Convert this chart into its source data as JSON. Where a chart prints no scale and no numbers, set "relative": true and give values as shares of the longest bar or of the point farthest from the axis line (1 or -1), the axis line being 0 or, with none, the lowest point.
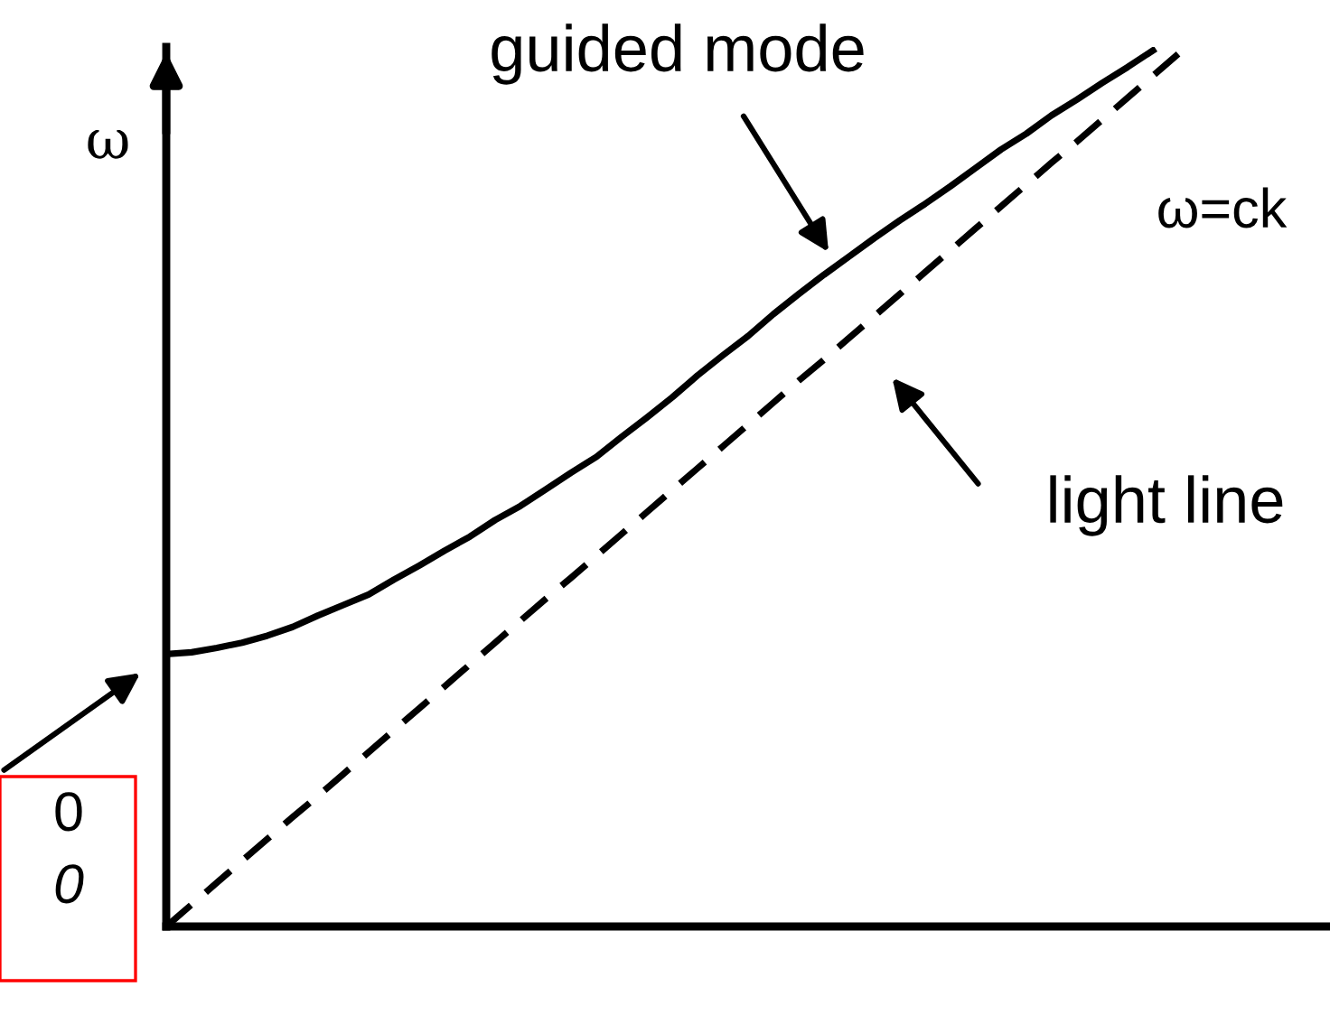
{
  "chart_data": {
    "type": "line",
    "relative": true,
    "ylabel": "ω",
    "categories": [
      null,
      null,
      null,
      null,
      null,
      null,
      null,
      null,
      null,
      null,
      null,
      null,
      null,
      null,
      null,
      null,
      null,
      null,
      null,
      null,
      null,
      null,
      null,
      null,
      null,
      null,
      null,
      null,
      null,
      null,
      null,
      null,
      null,
      null,
      null,
      null,
      null,
      null,
      null,
      null,
      null
    ],
    "series": [
      {
        "color": "#000000",
        "line_style": "solid",
        "values": [
          0.311,
          0.313,
          0.318,
          0.324,
          0.332,
          0.342,
          0.355,
          0.367,
          0.379,
          0.396,
          0.412,
          0.429,
          0.445,
          0.464,
          0.48,
          0.499,
          0.518,
          0.536,
          0.559,
          0.581,
          0.604,
          0.629,
          0.652,
          0.674,
          0.699,
          0.722,
          0.744,
          0.765,
          0.786,
          0.806,
          0.825,
          0.845,
          0.866,
          0.887,
          0.905,
          0.926,
          0.944,
          0.963,
          0.981,
          1.0,
          null
        ]
      },
      {
        "color": "#000000",
        "line_style": "dashed",
        "values": [
          0,
          0.025,
          0.05,
          0.075,
          0.1,
          0.125,
          0.149,
          0.174,
          0.199,
          0.224,
          0.249,
          0.274,
          0.299,
          0.324,
          0.349,
          0.374,
          0.398,
          0.423,
          0.448,
          0.473,
          0.498,
          0.523,
          0.548,
          0.573,
          0.598,
          0.623,
          0.647,
          0.672,
          0.697,
          0.722,
          0.747,
          0.772,
          0.797,
          0.822,
          0.847,
          0.872,
          0.896,
          0.921,
          0.946,
          0.971,
          0.996
        ]
      }
    ],
    "annotations": [
      "guided mode",
      "ω=ck",
      "light line",
      "0",
      "0"
    ],
    "marker": "none"
  }
}
